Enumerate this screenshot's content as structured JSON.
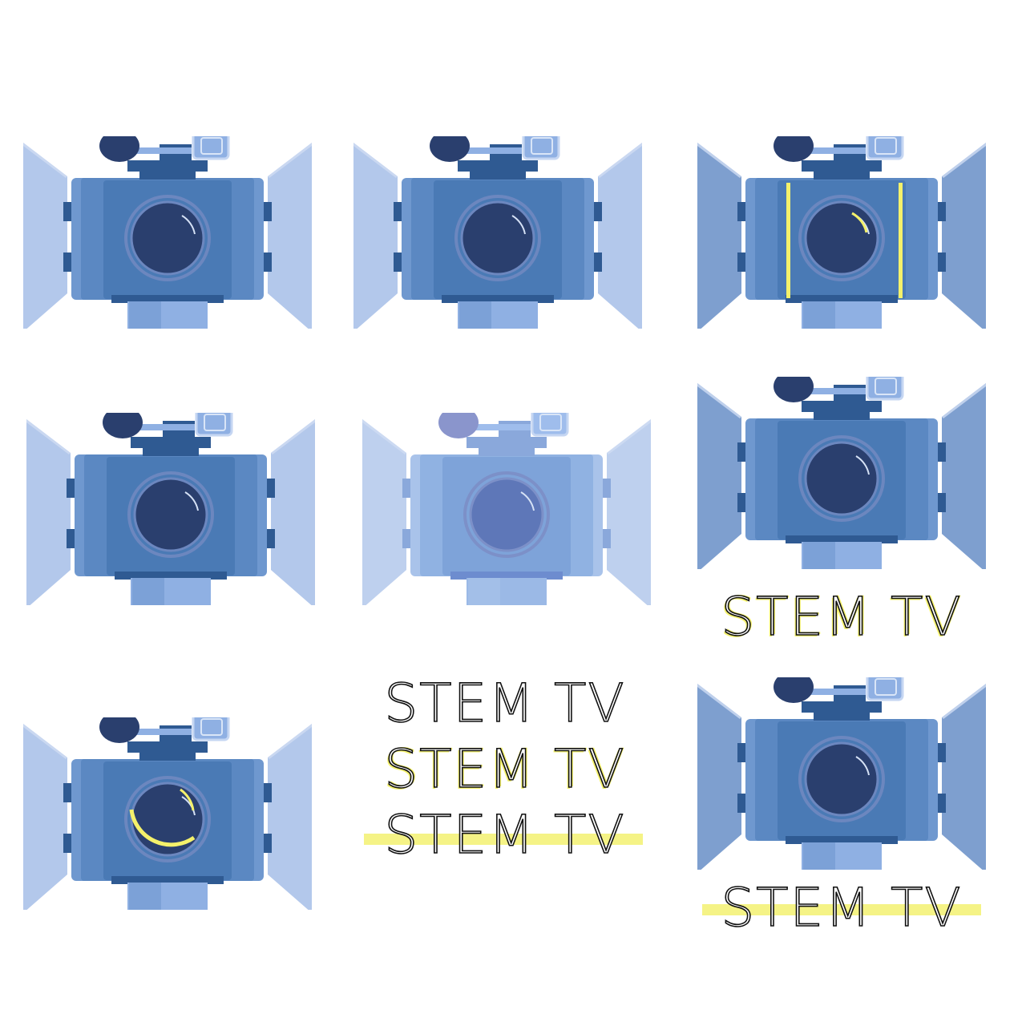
{
  "cameras": [
    {
      "id": "cam-1",
      "variant": "light-doors"
    },
    {
      "id": "cam-2",
      "variant": "light-doors"
    },
    {
      "id": "cam-3",
      "variant": "yellow-frame"
    },
    {
      "id": "cam-4",
      "variant": "light-doors"
    },
    {
      "id": "cam-5",
      "variant": "faded"
    },
    {
      "id": "cam-6",
      "variant": "dark-doors"
    },
    {
      "id": "cam-7",
      "variant": "yellow-lens-arc"
    },
    {
      "id": "cam-8",
      "variant": "dark-doors"
    }
  ],
  "wordmarks": [
    {
      "id": "wm-a",
      "text": "STEM TV",
      "style": "yellow-offset"
    },
    {
      "id": "wm-b",
      "text": "STEM TV",
      "style": "outline"
    },
    {
      "id": "wm-c",
      "text": "STEM TV",
      "style": "yellow-offset"
    },
    {
      "id": "wm-d",
      "text": "STEM TV",
      "style": "outline-highlight"
    },
    {
      "id": "wm-e",
      "text": "STEM TV",
      "style": "outline-highlight"
    }
  ],
  "colors": {
    "door_light": "#b3c8eb",
    "door_dark": "#7e9fcf",
    "body": "#4a7ab5",
    "lens": "#2a3f6e",
    "accent_yellow": "#f4f16b"
  }
}
